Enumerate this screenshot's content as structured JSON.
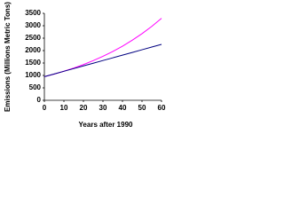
{
  "chart_data": {
    "type": "line",
    "x_label": "Years after 1990",
    "y_label": "Emissions (Millions Metric Tons)",
    "x": [
      0,
      5,
      10,
      15,
      20,
      25,
      30,
      35,
      40,
      45,
      50,
      55,
      60
    ],
    "series": [
      {
        "color": "#ff00ff",
        "values": [
          950,
          1054,
          1169,
          1297,
          1438,
          1595,
          1770,
          1963,
          2178,
          2416,
          2680,
          2973,
          3300
        ]
      },
      {
        "color": "#000080",
        "values": [
          950,
          1058,
          1167,
          1275,
          1383,
          1492,
          1600,
          1708,
          1817,
          1925,
          2033,
          2142,
          2250
        ]
      }
    ],
    "xlim": [
      0,
      60
    ],
    "xticks": [
      0,
      10,
      20,
      30,
      40,
      50,
      60
    ],
    "ylim": [
      0,
      3500
    ],
    "yticks": [
      0,
      500,
      1000,
      1500,
      2000,
      2500,
      3000,
      3500
    ]
  }
}
